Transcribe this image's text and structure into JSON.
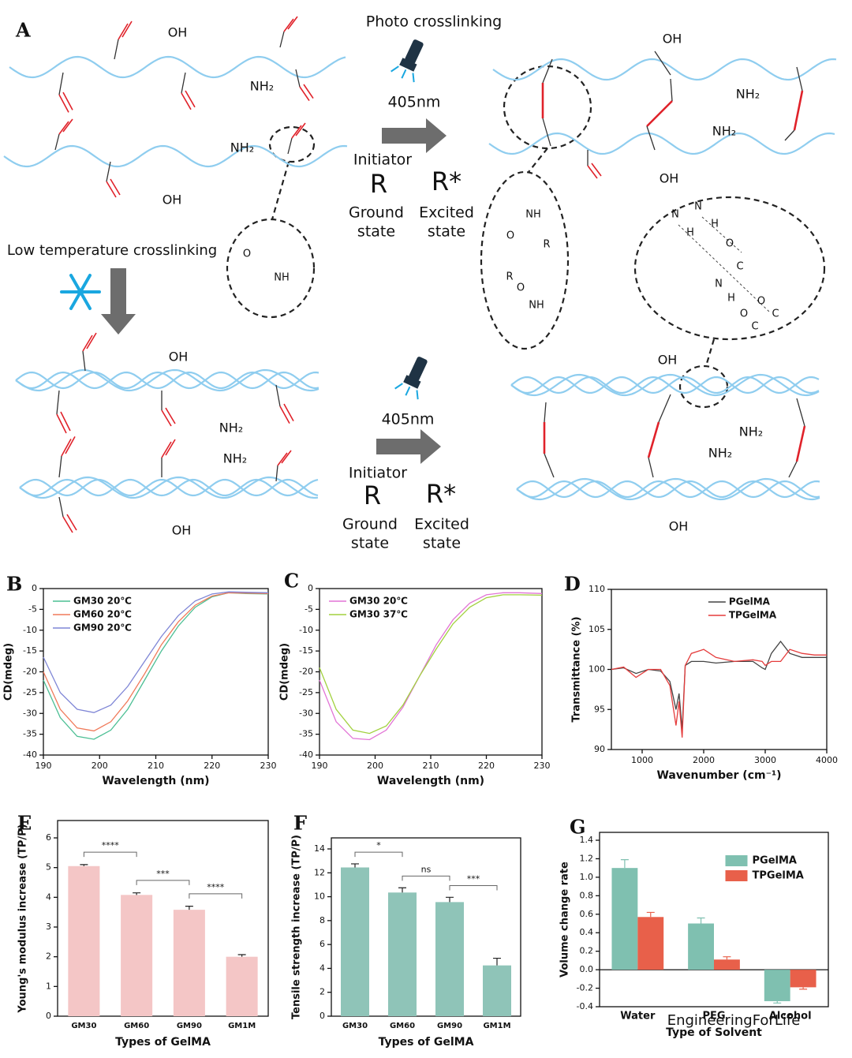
{
  "diagram": {
    "labels": [
      "A",
      "Photo crosslinking",
      "405nm",
      "Initiator",
      "R",
      "R*",
      "Ground",
      "state",
      "Excited",
      "state",
      "Low temperature crosslinking",
      "405nm",
      "Initiator",
      "R",
      "R*",
      "Ground",
      "state",
      "Excited",
      "state",
      "OH",
      "NH₂",
      "NH₂",
      "OH",
      "OH",
      "NH₂",
      "NH₂",
      "OH",
      "OH",
      "NH₂",
      "NH₂",
      "OH",
      "OH",
      "NH₂",
      "NH₂",
      "OH",
      "O",
      "NH",
      "NH",
      "O",
      "R",
      "R",
      "O",
      "NH",
      "N",
      "N",
      "H",
      "H",
      "O",
      "C",
      "N",
      "H",
      "O",
      "C",
      "O",
      "C",
      "EngineeringForLife"
    ]
  },
  "chart_data": [
    {
      "type": "line",
      "panel": "B",
      "xlabel": "Wavelength (nm)",
      "ylabel": "CD(mdeg)",
      "x": [
        190,
        193,
        196,
        199,
        202,
        205,
        208,
        211,
        214,
        217,
        220,
        223,
        226,
        230
      ],
      "series": [
        {
          "name": "GM30 20℃",
          "color": "#4cbf94",
          "values": [
            -22,
            -31,
            -35.5,
            -36.2,
            -34,
            -29,
            -22,
            -15,
            -9,
            -4.5,
            -2,
            -1,
            -1.2,
            -1.3
          ]
        },
        {
          "name": "GM60 20℃",
          "color": "#f07a5a",
          "values": [
            -20,
            -29,
            -33.5,
            -34.2,
            -32,
            -27,
            -20.5,
            -13.5,
            -8,
            -4,
            -1.8,
            -1,
            -1.1,
            -1.2
          ]
        },
        {
          "name": "GM90 20℃",
          "color": "#7f86d6",
          "values": [
            -16.5,
            -25,
            -29,
            -29.8,
            -28,
            -23.5,
            -17.5,
            -11.5,
            -6.5,
            -3,
            -1.3,
            -0.8,
            -0.9,
            -1
          ]
        }
      ],
      "xlim": [
        190,
        230
      ],
      "xticks": [
        190,
        200,
        210,
        220,
        230
      ],
      "ylim": [
        -40,
        0
      ],
      "yticks": [
        0,
        -5,
        -10,
        -15,
        -20,
        -25,
        -30,
        -35,
        -40
      ],
      "legend": "upper left"
    },
    {
      "type": "line",
      "panel": "C",
      "xlabel": "Wavelength (nm)",
      "ylabel": "CD(mdeg)",
      "x": [
        190,
        193,
        196,
        199,
        202,
        205,
        208,
        211,
        214,
        217,
        220,
        223,
        226,
        230
      ],
      "series": [
        {
          "name": "GM30 20℃",
          "color": "#e274d6",
          "values": [
            -22,
            -32,
            -36,
            -36.3,
            -34,
            -28.5,
            -21,
            -13.5,
            -7.5,
            -3.5,
            -1.5,
            -1,
            -1,
            -1.2
          ]
        },
        {
          "name": "GM30 37℃",
          "color": "#a2d13f",
          "values": [
            -19,
            -29,
            -34,
            -34.8,
            -33,
            -28,
            -21,
            -14.5,
            -8.5,
            -4.5,
            -2.2,
            -1.5,
            -1.5,
            -1.6
          ]
        }
      ],
      "xlim": [
        190,
        230
      ],
      "xticks": [
        190,
        200,
        210,
        220,
        230
      ],
      "ylim": [
        -40,
        0
      ],
      "yticks": [
        0,
        -5,
        -10,
        -15,
        -20,
        -25,
        -30,
        -35,
        -40
      ],
      "legend": "upper left"
    },
    {
      "type": "line",
      "panel": "D",
      "xlabel": "Wavenumber (cm⁻¹)",
      "ylabel": "Transmittance (%)",
      "x": [
        500,
        700,
        900,
        1100,
        1300,
        1450,
        1550,
        1600,
        1650,
        1700,
        1800,
        2000,
        2200,
        2500,
        2800,
        2950,
        3000,
        3100,
        3250,
        3400,
        3600,
        3800,
        4000
      ],
      "series": [
        {
          "name": "PGelMA",
          "color": "#444444",
          "values": [
            100,
            100.2,
            99.5,
            100,
            99.8,
            98.5,
            95,
            97,
            92.5,
            100.5,
            101,
            101,
            100.8,
            101,
            101,
            100.2,
            100,
            102,
            103.5,
            102,
            101.5,
            101.5,
            101.5
          ]
        },
        {
          "name": "TPGelMA",
          "color": "#e53c3c",
          "values": [
            100,
            100.3,
            99,
            100,
            100,
            98,
            93,
            96,
            91.5,
            100.5,
            102,
            102.5,
            101.5,
            101,
            101.2,
            101,
            100.5,
            101,
            101,
            102.5,
            102,
            101.8,
            101.8
          ]
        }
      ],
      "xlim": [
        500,
        4000
      ],
      "xticks": [
        1000,
        2000,
        3000,
        4000
      ],
      "ylim": [
        90,
        110
      ],
      "yticks": [
        90,
        95,
        100,
        105,
        110
      ],
      "legend": "upper center"
    },
    {
      "type": "bar",
      "panel": "E",
      "xlabel": "Types of GelMA",
      "ylabel": "Young's modulus increase (TP/P)",
      "categories": [
        "GM30",
        "GM60",
        "GM90",
        "GM1M"
      ],
      "values": [
        5.05,
        4.08,
        3.58,
        2.0
      ],
      "errors": [
        0.05,
        0.07,
        0.12,
        0.07
      ],
      "color": "#f4c6c6",
      "ylim": [
        0,
        6
      ],
      "yticks": [
        0,
        1,
        2,
        3,
        4,
        5,
        6
      ],
      "annotations": [
        {
          "text": "****",
          "between": [
            "GM30",
            "GM60"
          ]
        },
        {
          "text": "***",
          "between": [
            "GM60",
            "GM90"
          ]
        },
        {
          "text": "****",
          "between": [
            "GM90",
            "GM1M"
          ]
        }
      ]
    },
    {
      "type": "bar",
      "panel": "F",
      "xlabel": "Types of GelMA",
      "ylabel": "Tensile strength increase (TP/P)",
      "categories": [
        "GM30",
        "GM60",
        "GM90",
        "GM1M"
      ],
      "values": [
        12.45,
        10.35,
        9.55,
        4.25
      ],
      "errors": [
        0.3,
        0.4,
        0.4,
        0.6
      ],
      "color": "#8fc4b8",
      "ylim": [
        0,
        14
      ],
      "yticks": [
        0,
        2,
        4,
        6,
        8,
        10,
        12,
        14
      ],
      "annotations": [
        {
          "text": "*",
          "between": [
            "GM30",
            "GM60"
          ]
        },
        {
          "text": "ns",
          "between": [
            "GM60",
            "GM90"
          ]
        },
        {
          "text": "***",
          "between": [
            "GM90",
            "GM1M"
          ]
        }
      ]
    },
    {
      "type": "grouped_bar",
      "panel": "G",
      "xlabel": "Type of Solvent",
      "ylabel": "Volume change rate",
      "categories": [
        "Water",
        "PEG",
        "Alcohol"
      ],
      "series": [
        {
          "name": "PGelMA",
          "color": "#7fc0b0",
          "values": [
            1.1,
            0.5,
            -0.34
          ],
          "errors": [
            0.09,
            0.06,
            0.02
          ]
        },
        {
          "name": "TPGelMA",
          "color": "#e8604a",
          "values": [
            0.57,
            0.11,
            -0.19
          ],
          "errors": [
            0.05,
            0.03,
            0.02
          ]
        }
      ],
      "ylim": [
        -0.4,
        1.4
      ],
      "yticks": [
        -0.4,
        -0.2,
        {
          "value": 0,
          "label": "0.0"
        },
        0.2,
        0.4,
        0.6,
        0.8,
        {
          "value": 1,
          "label": "1.0"
        },
        1.2,
        1.4
      ],
      "legend": "upper right"
    }
  ]
}
